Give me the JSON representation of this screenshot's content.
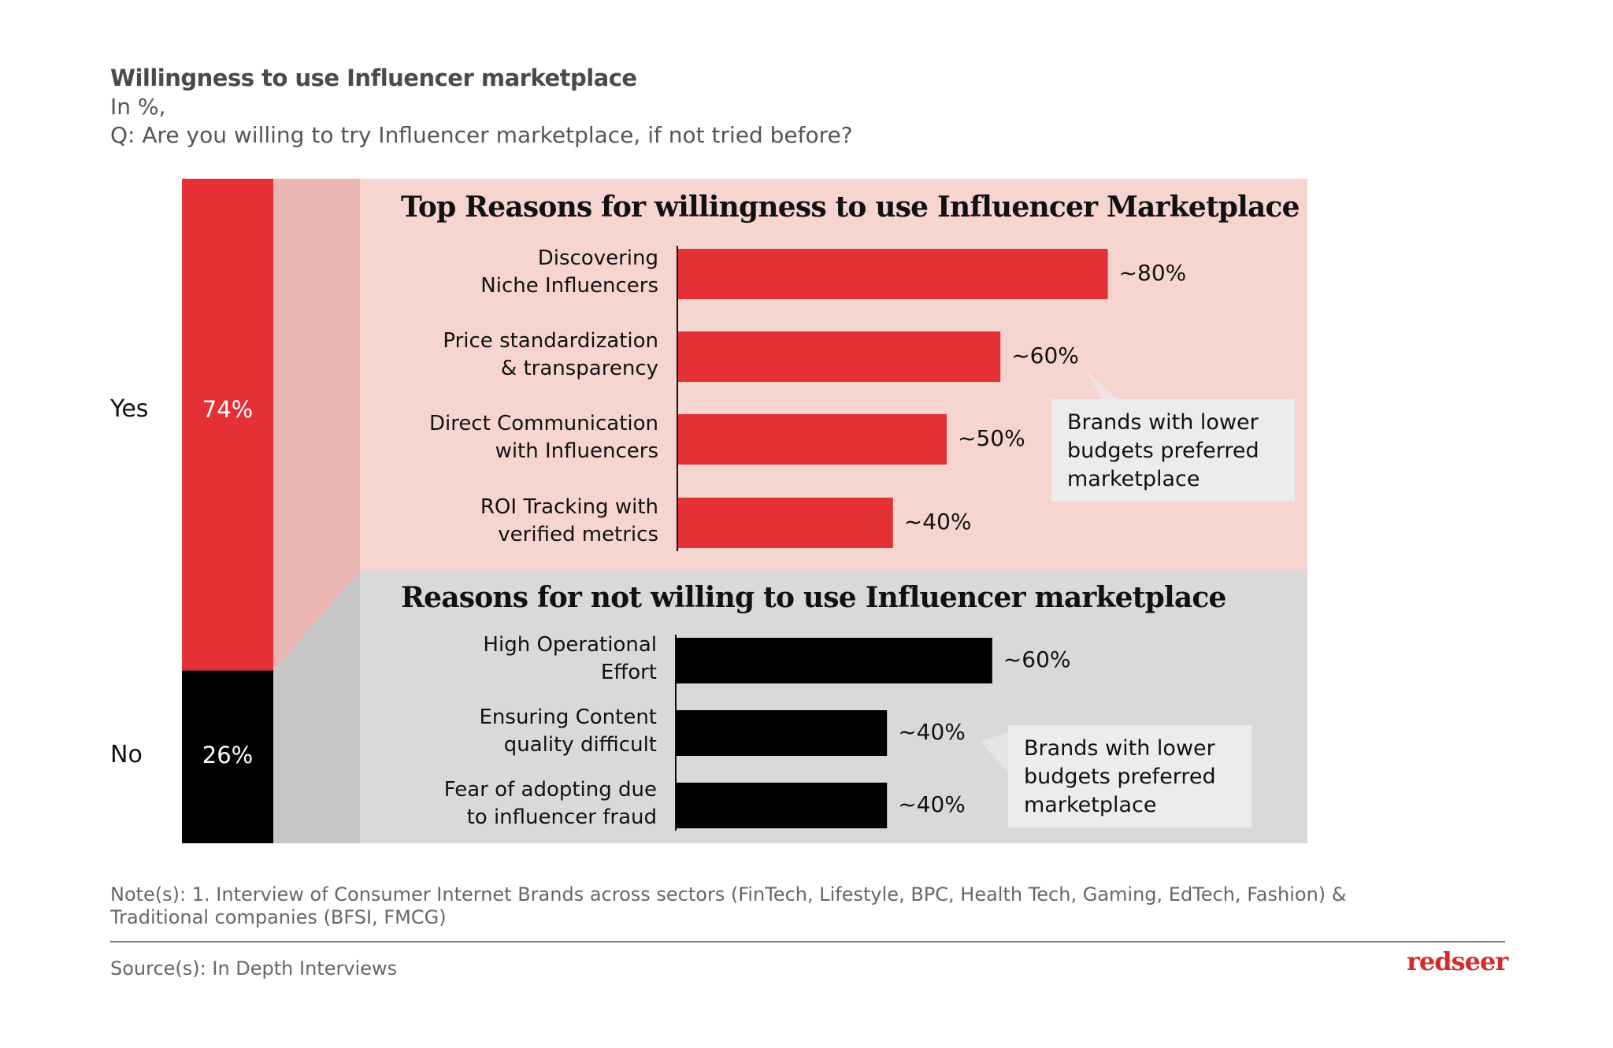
{
  "header": {
    "title": "Willingness to use Influencer marketplace",
    "unit": "In %,",
    "question": "Q: Are you willing to try Influencer marketplace, if not tried before?"
  },
  "colors": {
    "yes": "#e53035",
    "no": "#000000",
    "top_panel": "#f6d4cf",
    "bottom_panel": "#d9d9d9",
    "strip_pink": "#ebb6b2",
    "strip_gray": "#c6c6c6",
    "callout": "#ececec"
  },
  "chart_data": [
    {
      "type": "bar",
      "orientation": "stacked-vertical",
      "categories": [
        "Yes",
        "No"
      ],
      "values": [
        74,
        26
      ],
      "value_labels": [
        "74%",
        "26%"
      ]
    },
    {
      "type": "bar",
      "orientation": "horizontal",
      "title": "Top Reasons for willingness to use Influencer Marketplace",
      "categories": [
        "Discovering Niche Influencers",
        "Price standardization & transparency",
        "Direct Communication with Influencers",
        "ROI Tracking with verified metrics"
      ],
      "label_lines": [
        [
          "Discovering",
          "Niche Influencers"
        ],
        [
          "Price standardization",
          "& transparency"
        ],
        [
          "Direct Communication",
          "with Influencers"
        ],
        [
          "ROI Tracking with",
          "verified metrics"
        ]
      ],
      "values": [
        80,
        60,
        50,
        40
      ],
      "value_labels": [
        "~80%",
        "~60%",
        "~50%",
        "~40%"
      ],
      "callout": "Brands with lower budgets preferred marketplace"
    },
    {
      "type": "bar",
      "orientation": "horizontal",
      "title": "Reasons for not willing to use Influencer marketplace",
      "categories": [
        "High Operational Effort",
        "Ensuring Content quality difficult",
        "Fear of adopting due to influencer fraud"
      ],
      "label_lines": [
        [
          "High Operational",
          "Effort"
        ],
        [
          "Ensuring Content",
          "quality difficult"
        ],
        [
          "Fear of adopting due",
          "to influencer fraud"
        ]
      ],
      "values": [
        60,
        40,
        40
      ],
      "value_labels": [
        "~60%",
        "~40%",
        "~40%"
      ],
      "callout": "Brands with lower budgets preferred marketplace"
    }
  ],
  "footer": {
    "note_line1": "Note(s): 1. Interview of Consumer Internet Brands across sectors (FinTech, Lifestyle, BPC, Health Tech, Gaming, EdTech, Fashion) &",
    "note_line2": "Traditional companies (BFSI, FMCG)",
    "source": "Source(s): In Depth Interviews",
    "logo": "redseer"
  }
}
